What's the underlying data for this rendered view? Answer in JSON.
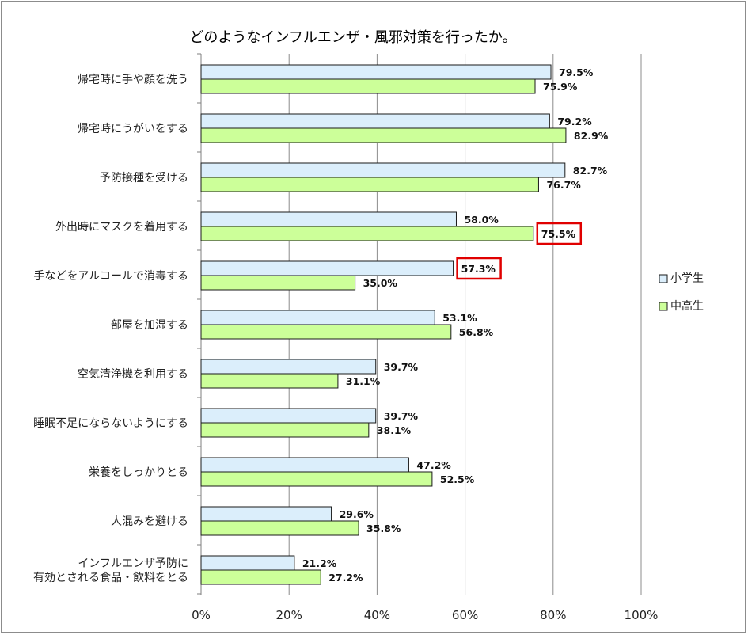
{
  "chart_data": {
    "type": "bar",
    "orientation": "horizontal",
    "title": "どのようなインフルエンザ・風邪対策を行ったか。",
    "categories": [
      [
        "帰宅時に手や顔を洗う"
      ],
      [
        "帰宅時にうがいをする"
      ],
      [
        "予防接種を受ける"
      ],
      [
        "外出時にマスクを着用する"
      ],
      [
        "手などをアルコールで消毒する"
      ],
      [
        "部屋を加湿する"
      ],
      [
        "空気清浄機を利用する"
      ],
      [
        "睡眠不足にならないようにする"
      ],
      [
        "栄養をしっかりとる"
      ],
      [
        "人混みを避ける"
      ],
      [
        "インフルエンザ予防に",
        "有効とされる食品・飲料をとる"
      ]
    ],
    "series": [
      {
        "name": "小学生",
        "color": "#dbeefb",
        "values": [
          79.5,
          79.2,
          82.7,
          58.0,
          57.3,
          53.1,
          39.7,
          39.7,
          47.2,
          29.6,
          21.2
        ],
        "labels": [
          "79.5%",
          "79.2%",
          "82.7%",
          "58.0%",
          "57.3%",
          "53.1%",
          "39.7%",
          "39.7%",
          "47.2%",
          "29.6%",
          "21.2%"
        ]
      },
      {
        "name": "中高生",
        "color": "#ccff99",
        "values": [
          75.9,
          82.9,
          76.7,
          75.5,
          35.0,
          56.8,
          31.1,
          38.1,
          52.5,
          35.8,
          27.2
        ],
        "labels": [
          "75.9%",
          "82.9%",
          "76.7%",
          "75.5%",
          "35.0%",
          "56.8%",
          "31.1%",
          "38.1%",
          "52.5%",
          "35.8%",
          "27.2%"
        ]
      }
    ],
    "x_ticks": [
      "0%",
      "20%",
      "40%",
      "60%",
      "80%",
      "100%"
    ],
    "xlim": [
      0,
      100
    ],
    "grid": true,
    "legend": "right",
    "highlighted_labels": [
      {
        "series": 1,
        "category": 3,
        "color": "#e00000"
      },
      {
        "series": 0,
        "category": 4,
        "color": "#e00000"
      }
    ]
  }
}
